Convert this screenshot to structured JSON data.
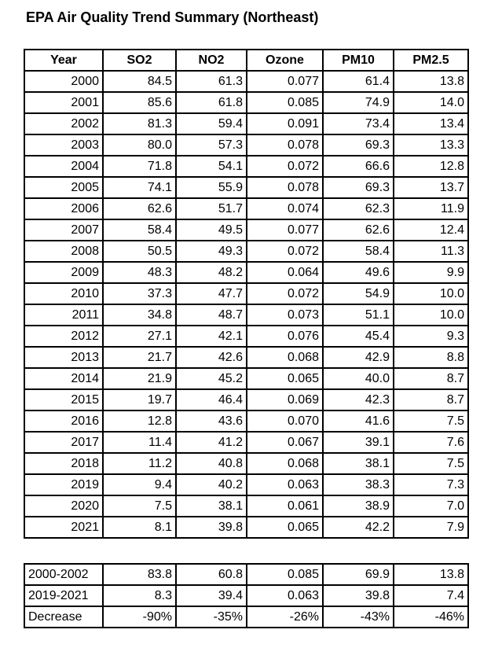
{
  "page": {
    "title": "EPA Air Quality Trend Summary (Northeast)"
  },
  "chart_data": {
    "type": "table",
    "title": "EPA Air Quality Trend Summary (Northeast)",
    "columns": [
      "Year",
      "SO2",
      "NO2",
      "Ozone",
      "PM10",
      "PM2.5"
    ],
    "rows": [
      [
        "2000",
        "84.5",
        "61.3",
        "0.077",
        "61.4",
        "13.8"
      ],
      [
        "2001",
        "85.6",
        "61.8",
        "0.085",
        "74.9",
        "14.0"
      ],
      [
        "2002",
        "81.3",
        "59.4",
        "0.091",
        "73.4",
        "13.4"
      ],
      [
        "2003",
        "80.0",
        "57.3",
        "0.078",
        "69.3",
        "13.3"
      ],
      [
        "2004",
        "71.8",
        "54.1",
        "0.072",
        "66.6",
        "12.8"
      ],
      [
        "2005",
        "74.1",
        "55.9",
        "0.078",
        "69.3",
        "13.7"
      ],
      [
        "2006",
        "62.6",
        "51.7",
        "0.074",
        "62.3",
        "11.9"
      ],
      [
        "2007",
        "58.4",
        "49.5",
        "0.077",
        "62.6",
        "12.4"
      ],
      [
        "2008",
        "50.5",
        "49.3",
        "0.072",
        "58.4",
        "11.3"
      ],
      [
        "2009",
        "48.3",
        "48.2",
        "0.064",
        "49.6",
        "9.9"
      ],
      [
        "2010",
        "37.3",
        "47.7",
        "0.072",
        "54.9",
        "10.0"
      ],
      [
        "2011",
        "34.8",
        "48.7",
        "0.073",
        "51.1",
        "10.0"
      ],
      [
        "2012",
        "27.1",
        "42.1",
        "0.076",
        "45.4",
        "9.3"
      ],
      [
        "2013",
        "21.7",
        "42.6",
        "0.068",
        "42.9",
        "8.8"
      ],
      [
        "2014",
        "21.9",
        "45.2",
        "0.065",
        "40.0",
        "8.7"
      ],
      [
        "2015",
        "19.7",
        "46.4",
        "0.069",
        "42.3",
        "8.7"
      ],
      [
        "2016",
        "12.8",
        "43.6",
        "0.070",
        "41.6",
        "7.5"
      ],
      [
        "2017",
        "11.4",
        "41.2",
        "0.067",
        "39.1",
        "7.6"
      ],
      [
        "2018",
        "11.2",
        "40.8",
        "0.068",
        "38.1",
        "7.5"
      ],
      [
        "2019",
        "9.4",
        "40.2",
        "0.063",
        "38.3",
        "7.3"
      ],
      [
        "2020",
        "7.5",
        "38.1",
        "0.061",
        "38.9",
        "7.0"
      ],
      [
        "2021",
        "8.1",
        "39.8",
        "0.065",
        "42.2",
        "7.9"
      ]
    ],
    "summary_rows": [
      [
        "2000-2002",
        "83.8",
        "60.8",
        "0.085",
        "69.9",
        "13.8"
      ],
      [
        "2019-2021",
        "8.3",
        "39.4",
        "0.063",
        "39.8",
        "7.4"
      ],
      [
        "Decrease",
        "-90%",
        "-35%",
        "-26%",
        "-43%",
        "-46%"
      ]
    ],
    "layout_hints": {
      "grid": "all-borders",
      "header_style": "bold-centered",
      "value_alignment": "right",
      "summary_label_alignment": "left"
    },
    "colors": {
      "text": "#000000",
      "border": "#000000",
      "background": "#ffffff"
    }
  }
}
